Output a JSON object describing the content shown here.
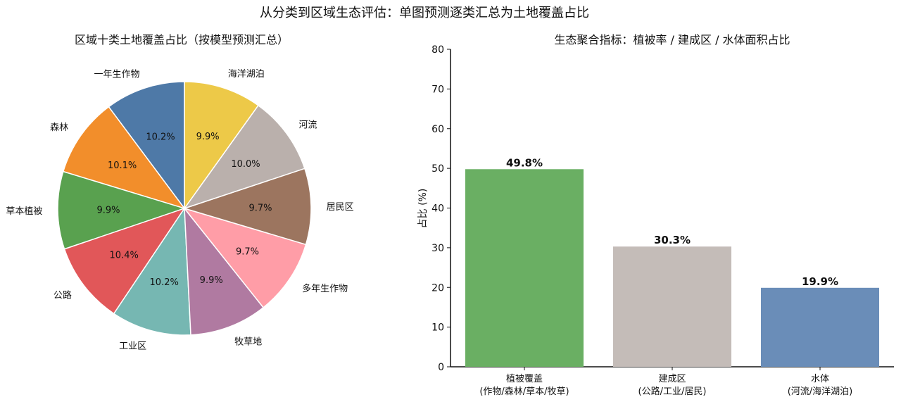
{
  "figure": {
    "suptitle": "从分类到区域生态评估：单图预测逐类汇总为土地覆盖占比"
  },
  "chart_data": [
    {
      "type": "pie",
      "title": "区域十类土地覆盖占比（按模型预测汇总）",
      "slices": [
        {
          "label": "一年生作物",
          "value": 10.2,
          "pct_label": "10.2%",
          "color": "#4e79a7"
        },
        {
          "label": "森林",
          "value": 10.1,
          "pct_label": "10.1%",
          "color": "#f28e2b"
        },
        {
          "label": "草本植被",
          "value": 9.9,
          "pct_label": "9.9%",
          "color": "#59a14f"
        },
        {
          "label": "公路",
          "value": 10.4,
          "pct_label": "10.4%",
          "color": "#e15759"
        },
        {
          "label": "工业区",
          "value": 10.2,
          "pct_label": "10.2%",
          "color": "#76b7b2"
        },
        {
          "label": "牧草地",
          "value": 9.9,
          "pct_label": "9.9%",
          "color": "#b07aa1"
        },
        {
          "label": "多年生作物",
          "value": 9.7,
          "pct_label": "9.7%",
          "color": "#ff9da7"
        },
        {
          "label": "居民区",
          "value": 9.7,
          "pct_label": "9.7%",
          "color": "#9c755f"
        },
        {
          "label": "河流",
          "value": 10.0,
          "pct_label": "10.0%",
          "color": "#bab0ac"
        },
        {
          "label": "海洋湖泊",
          "value": 9.9,
          "pct_label": "9.9%",
          "color": "#edc948"
        }
      ],
      "start_angle_deg": 90,
      "direction": "counterclockwise"
    },
    {
      "type": "bar",
      "title": "生态聚合指标：植被率 / 建成区 / 水体面积占比",
      "ylabel": "占比 (%)",
      "ylim": [
        0,
        80
      ],
      "yticks": [
        "0",
        "10",
        "20",
        "30",
        "40",
        "50",
        "60",
        "70",
        "80"
      ],
      "categories": [
        {
          "line1": "植被覆盖",
          "line2": "(作物/森林/草本/牧草)"
        },
        {
          "line1": "建成区",
          "line2": "(公路/工业/居民)"
        },
        {
          "line1": "水体",
          "line2": "(河流/海洋湖泊)"
        }
      ],
      "values": [
        49.8,
        30.3,
        19.9
      ],
      "value_labels": [
        "49.8%",
        "30.3%",
        "19.9%"
      ],
      "colors": [
        "#6aaf63",
        "#c4bcb8",
        "#6a8db8"
      ],
      "grid": false
    }
  ]
}
